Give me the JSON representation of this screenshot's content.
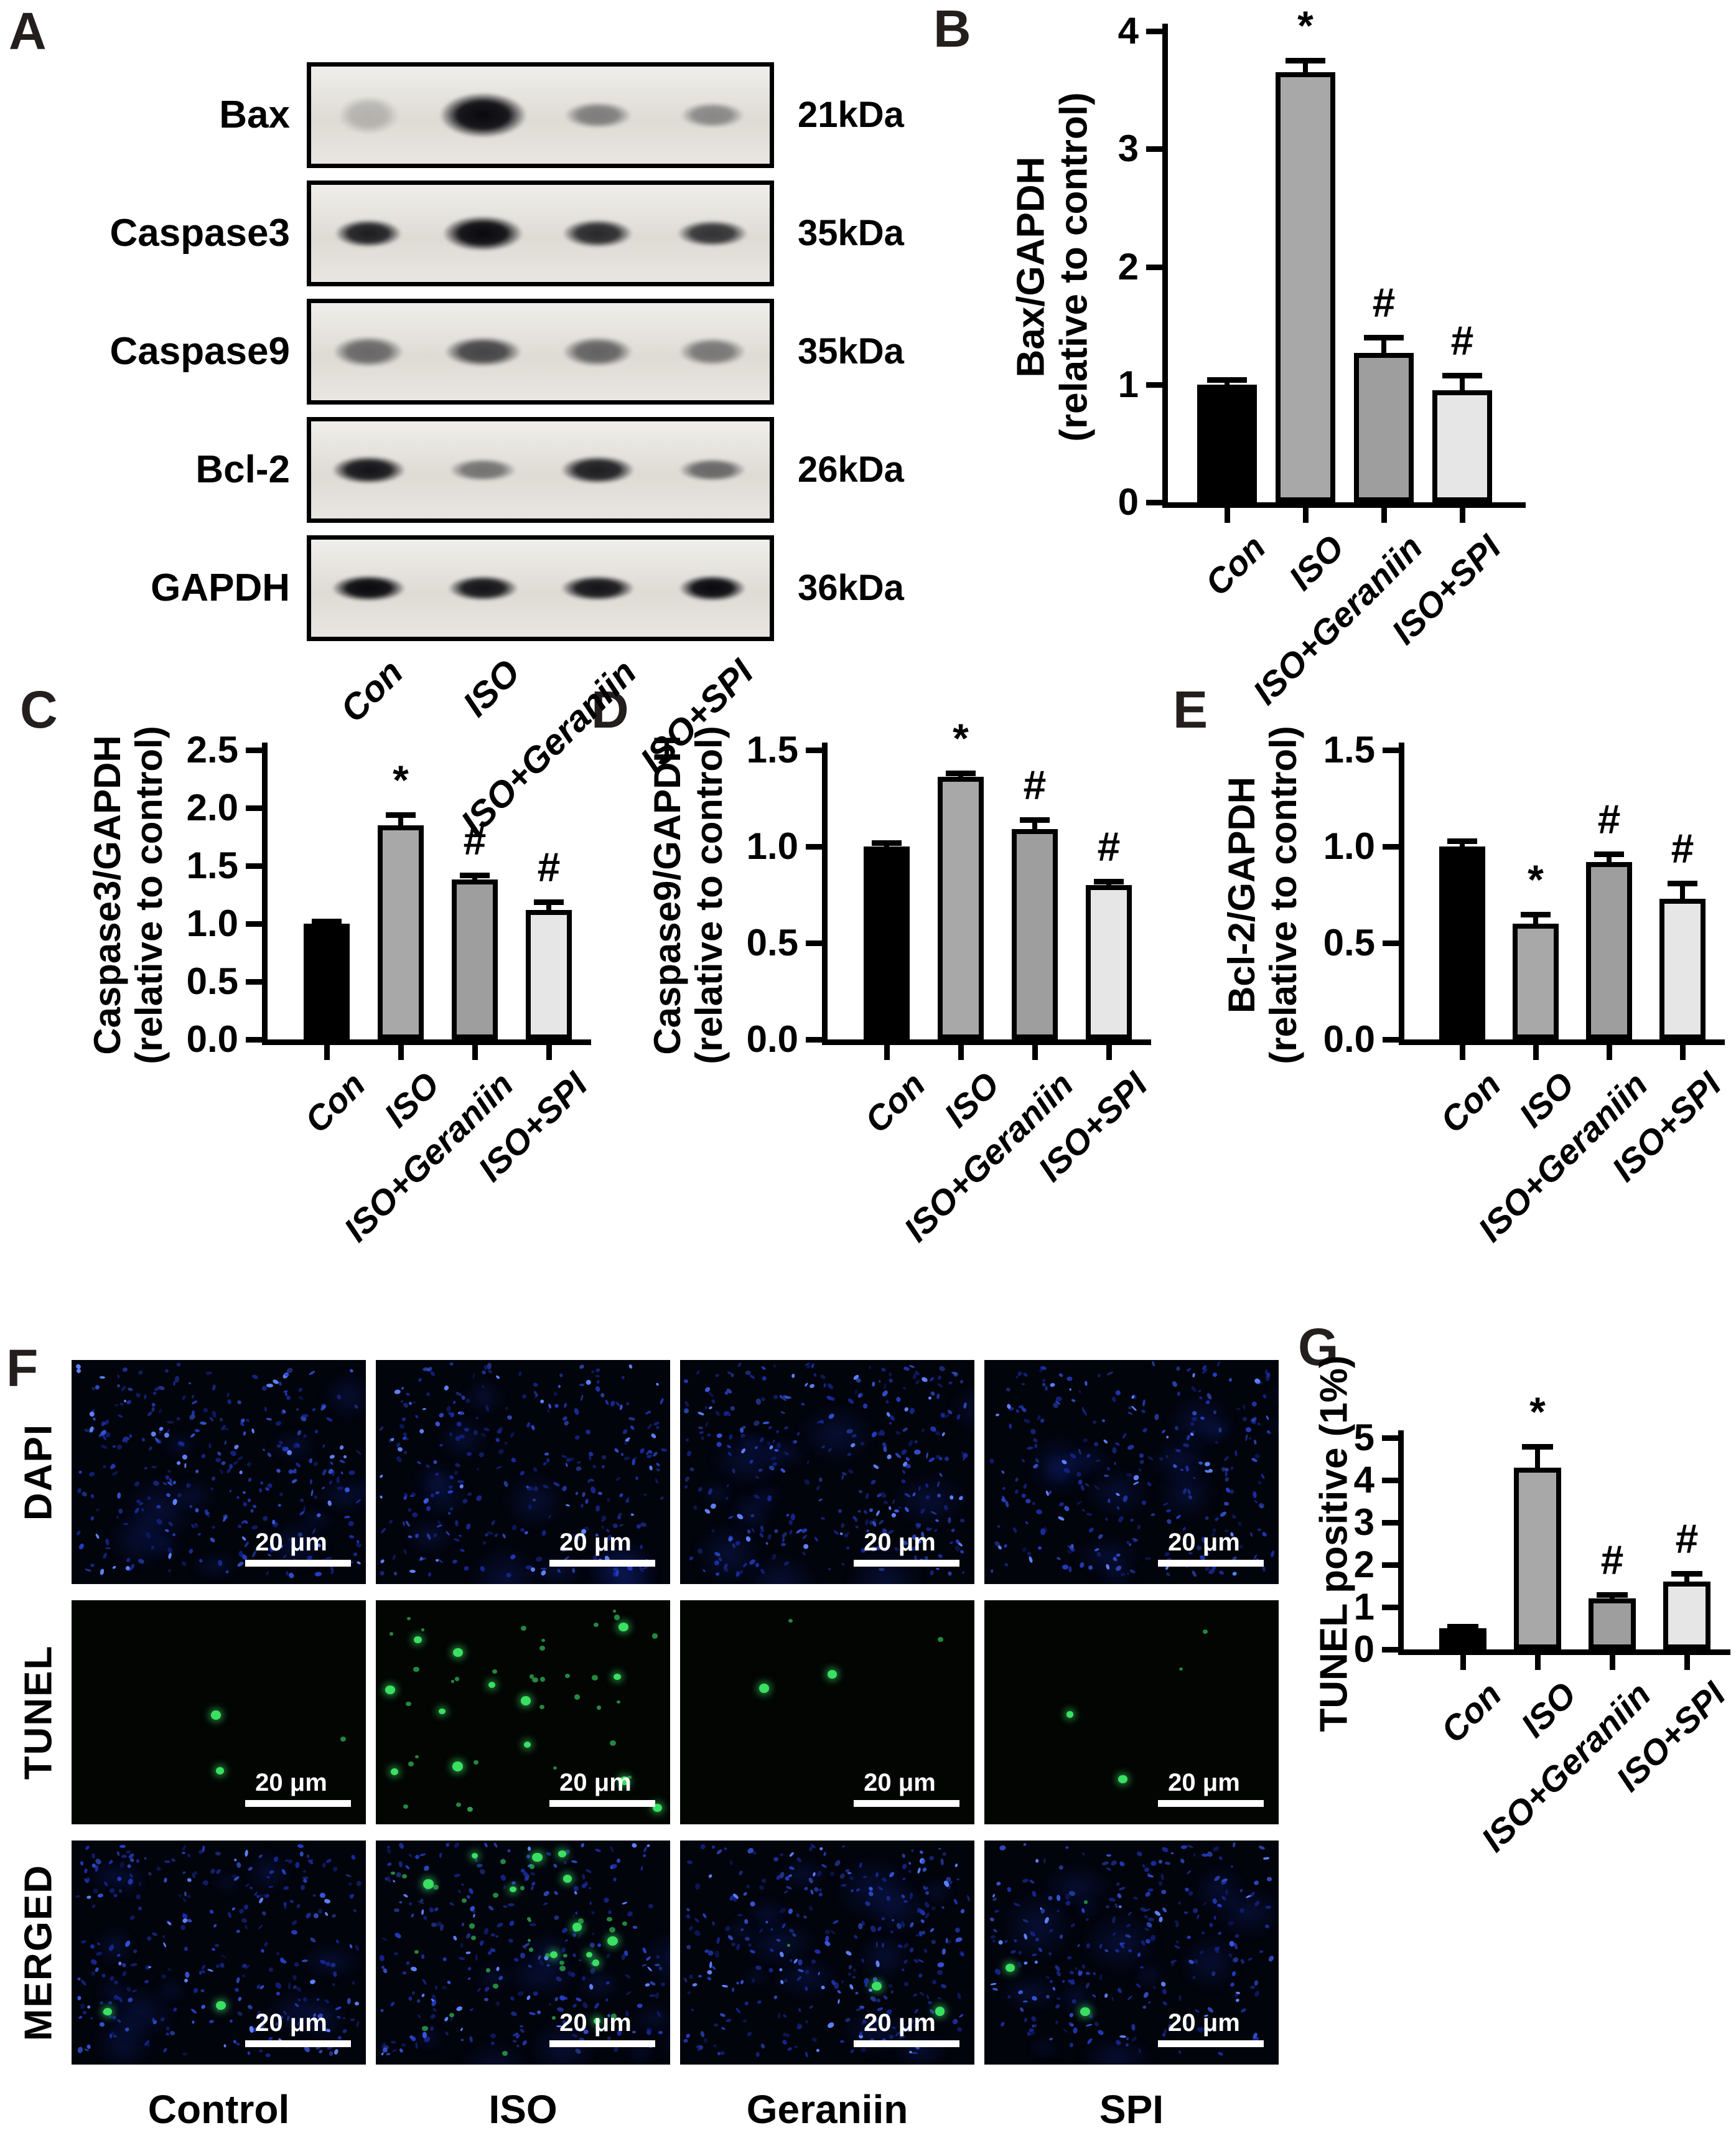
{
  "panels": {
    "A": "A",
    "B": "B",
    "C": "C",
    "D": "D",
    "E": "E",
    "F": "F",
    "G": "G"
  },
  "colors": {
    "bars": [
      "#000000",
      "#a8a8a8",
      "#9e9e9e",
      "#e6e6e6"
    ],
    "axis": "#000000",
    "dapi_blue": "#2a43d6",
    "tunel_green": "#3ae061",
    "scale_bar": "#ffffff",
    "panel_letter": "#241e1e"
  },
  "panel_a": {
    "lane_labels": [
      "Con",
      "ISO",
      "ISO+Geraniin",
      "ISO+SPI"
    ],
    "blots": [
      {
        "protein": "Bax",
        "kda": "21kDa",
        "bands": [
          {
            "o": 0.2,
            "wf": 0.9,
            "hf": 1.35
          },
          {
            "o": 1.0,
            "wf": 1.3,
            "hf": 1.6
          },
          {
            "o": 0.45,
            "wf": 1.0,
            "hf": 0.95
          },
          {
            "o": 0.4,
            "wf": 0.95,
            "hf": 0.9
          }
        ]
      },
      {
        "protein": "Caspase3",
        "kda": "35kDa",
        "bands": [
          {
            "o": 0.9,
            "wf": 1.0,
            "hf": 1.0
          },
          {
            "o": 1.0,
            "wf": 1.2,
            "hf": 1.25
          },
          {
            "o": 0.85,
            "wf": 1.05,
            "hf": 1.0
          },
          {
            "o": 0.8,
            "wf": 1.05,
            "hf": 0.95
          }
        ]
      },
      {
        "protein": "Caspase9",
        "kda": "35kDa",
        "bands": [
          {
            "o": 0.55,
            "wf": 1.05,
            "hf": 1.1
          },
          {
            "o": 0.72,
            "wf": 1.15,
            "hf": 1.05
          },
          {
            "o": 0.58,
            "wf": 1.05,
            "hf": 1.05
          },
          {
            "o": 0.48,
            "wf": 1.0,
            "hf": 1.0
          }
        ]
      },
      {
        "protein": "Bcl-2",
        "kda": "26kDa",
        "bands": [
          {
            "o": 0.95,
            "wf": 1.1,
            "hf": 1.0
          },
          {
            "o": 0.5,
            "wf": 1.0,
            "hf": 0.8
          },
          {
            "o": 0.9,
            "wf": 1.1,
            "hf": 1.0
          },
          {
            "o": 0.55,
            "wf": 1.0,
            "hf": 0.8
          }
        ]
      },
      {
        "protein": "GAPDH",
        "kda": "36kDa",
        "bands": [
          {
            "o": 1.0,
            "wf": 1.1,
            "hf": 0.95
          },
          {
            "o": 0.95,
            "wf": 1.05,
            "hf": 0.9
          },
          {
            "o": 0.95,
            "wf": 1.1,
            "hf": 0.9
          },
          {
            "o": 1.0,
            "wf": 1.0,
            "hf": 0.95
          }
        ]
      }
    ]
  },
  "chart_data": [
    {
      "id": "b",
      "type": "bar",
      "ylabel_line1": "Bax/GAPDH",
      "ylabel_line2": "(relative to control)",
      "ymax": 4,
      "ytick_values": [
        0,
        1,
        2,
        3,
        4
      ],
      "ytick_labels": [
        "0",
        "1",
        "2",
        "3",
        "4"
      ],
      "categories": [
        "Con",
        "ISO",
        "ISO+Geraniin",
        "ISO+SPI"
      ],
      "values": [
        1.0,
        3.65,
        1.27,
        0.95
      ],
      "errors": [
        0.04,
        0.1,
        0.13,
        0.13
      ],
      "sig": [
        "",
        "*",
        "#",
        "#"
      ]
    },
    {
      "id": "c",
      "type": "bar",
      "ylabel_line1": "Caspase3/GAPDH",
      "ylabel_line2": "(relative to control)",
      "ymax": 2.5,
      "ytick_values": [
        0,
        0.5,
        1.0,
        1.5,
        2.0,
        2.5
      ],
      "ytick_labels": [
        "0.0",
        "0.5",
        "1.0",
        "1.5",
        "2.0",
        "2.5"
      ],
      "categories": [
        "Con",
        "ISO",
        "ISO+Geraniin",
        "ISO+SPI"
      ],
      "values": [
        1.0,
        1.85,
        1.38,
        1.12
      ],
      "errors": [
        0.02,
        0.09,
        0.04,
        0.07
      ],
      "sig": [
        "",
        "*",
        "#",
        "#"
      ]
    },
    {
      "id": "d",
      "type": "bar",
      "ylabel_line1": "Caspase9/GAPDH",
      "ylabel_line2": "(relative to control)",
      "ymax": 1.5,
      "ytick_values": [
        0,
        0.5,
        1.0,
        1.5
      ],
      "ytick_labels": [
        "0.0",
        "0.5",
        "1.0",
        "1.5"
      ],
      "categories": [
        "Con",
        "ISO",
        "ISO+Geraniin",
        "ISO+SPI"
      ],
      "values": [
        1.0,
        1.36,
        1.09,
        0.8
      ],
      "errors": [
        0.02,
        0.02,
        0.05,
        0.02
      ],
      "sig": [
        "",
        "*",
        "#",
        "#"
      ]
    },
    {
      "id": "e",
      "type": "bar",
      "ylabel_line1": "Bcl-2/GAPDH",
      "ylabel_line2": "(relative to control)",
      "ymax": 1.5,
      "ytick_values": [
        0,
        0.5,
        1.0,
        1.5
      ],
      "ytick_labels": [
        "0.0",
        "0.5",
        "1.0",
        "1.5"
      ],
      "categories": [
        "Con",
        "ISO",
        "ISO+Geraniin",
        "ISO+SPI"
      ],
      "values": [
        1.0,
        0.6,
        0.92,
        0.73
      ],
      "errors": [
        0.03,
        0.05,
        0.04,
        0.08
      ],
      "sig": [
        "",
        "*",
        "#",
        "#"
      ]
    },
    {
      "id": "g",
      "type": "bar",
      "ylabel_line1": "TUNEL positive (1%)",
      "ylabel_line2": "",
      "ymax": 5,
      "ytick_values": [
        0,
        1,
        2,
        3,
        4,
        5
      ],
      "ytick_labels": [
        "0",
        "1",
        "2",
        "3",
        "4",
        "5"
      ],
      "categories": [
        "Con",
        "ISO",
        "ISO+Geraniin",
        "ISO+SPI"
      ],
      "values": [
        0.5,
        4.3,
        1.2,
        1.6
      ],
      "errors": [
        0.04,
        0.5,
        0.1,
        0.2
      ],
      "sig": [
        "",
        "*",
        "#",
        "#"
      ]
    }
  ],
  "panel_f": {
    "row_labels": [
      "DAPI",
      "TUNEL",
      "MERGED"
    ],
    "col_labels": [
      "Control",
      "ISO",
      "Geraniin",
      "SPI"
    ],
    "scale_bar_text": "20 μm",
    "tiles": [
      [
        {
          "blue": 320,
          "green": 0
        },
        {
          "blue": 300,
          "green": 0
        },
        {
          "blue": 330,
          "green": 0
        },
        {
          "blue": 280,
          "green": 0
        }
      ],
      [
        {
          "blue": 0,
          "green": 3
        },
        {
          "blue": 0,
          "green": 48
        },
        {
          "blue": 0,
          "green": 4
        },
        {
          "blue": 0,
          "green": 4
        }
      ],
      [
        {
          "blue": 300,
          "green": 2
        },
        {
          "blue": 280,
          "green": 42
        },
        {
          "blue": 320,
          "green": 3
        },
        {
          "blue": 270,
          "green": 3
        }
      ]
    ]
  }
}
